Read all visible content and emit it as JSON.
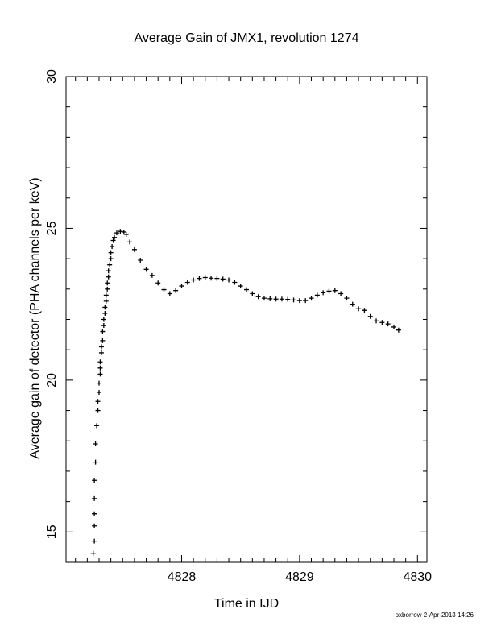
{
  "chart_data": {
    "type": "scatter",
    "title": "Average Gain of JMX1, revolution 1274",
    "xlabel": "Time in IJD",
    "ylabel": "Average gain of detector (PHA channels per keV)",
    "xlim": [
      4827.02,
      4830.08
    ],
    "ylim": [
      14,
      30
    ],
    "xticks": [
      4828,
      4829,
      4830
    ],
    "yticks": [
      15,
      20,
      25,
      30
    ],
    "grid": false,
    "marker": "+",
    "color": "#000000",
    "footer": "oxborrow  2-Apr-2013 14:26",
    "points": [
      [
        4827.25,
        14.3
      ],
      [
        4827.26,
        14.7
      ],
      [
        4827.26,
        15.2
      ],
      [
        4827.26,
        15.6
      ],
      [
        4827.26,
        16.1
      ],
      [
        4827.26,
        16.7
      ],
      [
        4827.27,
        17.3
      ],
      [
        4827.27,
        17.9
      ],
      [
        4827.28,
        18.5
      ],
      [
        4827.29,
        19.0
      ],
      [
        4827.29,
        19.3
      ],
      [
        4827.3,
        19.6
      ],
      [
        4827.3,
        19.9
      ],
      [
        4827.31,
        20.2
      ],
      [
        4827.31,
        20.4
      ],
      [
        4827.31,
        20.6
      ],
      [
        4827.32,
        20.9
      ],
      [
        4827.32,
        21.1
      ],
      [
        4827.33,
        21.3
      ],
      [
        4827.33,
        21.6
      ],
      [
        4827.34,
        21.8
      ],
      [
        4827.34,
        22.0
      ],
      [
        4827.35,
        22.2
      ],
      [
        4827.35,
        22.4
      ],
      [
        4827.36,
        22.6
      ],
      [
        4827.36,
        22.8
      ],
      [
        4827.37,
        23.0
      ],
      [
        4827.37,
        23.2
      ],
      [
        4827.38,
        23.4
      ],
      [
        4827.38,
        23.6
      ],
      [
        4827.39,
        23.8
      ],
      [
        4827.4,
        24.0
      ],
      [
        4827.4,
        24.2
      ],
      [
        4827.41,
        24.4
      ],
      [
        4827.42,
        24.6
      ],
      [
        4827.43,
        24.7
      ],
      [
        4827.45,
        24.85
      ],
      [
        4827.48,
        24.9
      ],
      [
        4827.51,
        24.88
      ],
      [
        4827.53,
        24.8
      ],
      [
        4827.56,
        24.55
      ],
      [
        4827.6,
        24.3
      ],
      [
        4827.65,
        23.95
      ],
      [
        4827.7,
        23.65
      ],
      [
        4827.75,
        23.45
      ],
      [
        4827.8,
        23.2
      ],
      [
        4827.85,
        22.98
      ],
      [
        4827.9,
        22.85
      ],
      [
        4827.95,
        22.95
      ],
      [
        4828.0,
        23.1
      ],
      [
        4828.05,
        23.22
      ],
      [
        4828.1,
        23.3
      ],
      [
        4828.15,
        23.35
      ],
      [
        4828.2,
        23.38
      ],
      [
        4828.25,
        23.36
      ],
      [
        4828.3,
        23.35
      ],
      [
        4828.35,
        23.33
      ],
      [
        4828.4,
        23.3
      ],
      [
        4828.45,
        23.22
      ],
      [
        4828.5,
        23.1
      ],
      [
        4828.55,
        22.98
      ],
      [
        4828.6,
        22.85
      ],
      [
        4828.65,
        22.75
      ],
      [
        4828.7,
        22.7
      ],
      [
        4828.75,
        22.68
      ],
      [
        4828.8,
        22.67
      ],
      [
        4828.85,
        22.67
      ],
      [
        4828.9,
        22.66
      ],
      [
        4828.95,
        22.64
      ],
      [
        4829.0,
        22.62
      ],
      [
        4829.05,
        22.62
      ],
      [
        4829.1,
        22.7
      ],
      [
        4829.15,
        22.8
      ],
      [
        4829.2,
        22.88
      ],
      [
        4829.25,
        22.93
      ],
      [
        4829.3,
        22.95
      ],
      [
        4829.35,
        22.85
      ],
      [
        4829.4,
        22.7
      ],
      [
        4829.45,
        22.5
      ],
      [
        4829.5,
        22.35
      ],
      [
        4829.55,
        22.3
      ],
      [
        4829.6,
        22.1
      ],
      [
        4829.65,
        21.95
      ],
      [
        4829.7,
        21.9
      ],
      [
        4829.75,
        21.85
      ],
      [
        4829.8,
        21.75
      ],
      [
        4829.84,
        21.65
      ]
    ]
  }
}
